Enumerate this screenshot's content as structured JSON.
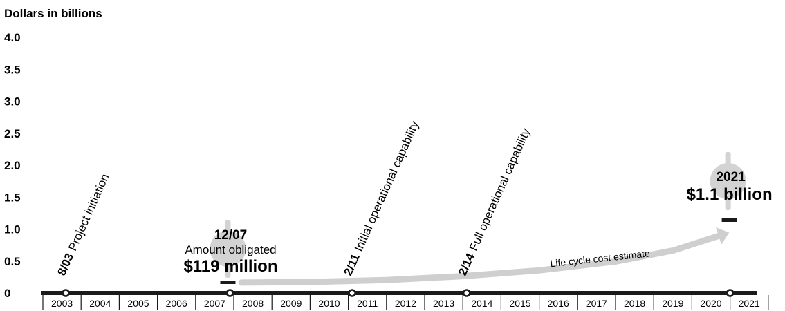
{
  "chart_data": {
    "type": "line",
    "ylabel": "Dollars in billions",
    "ylim": [
      0,
      4.0
    ],
    "yticks": [
      "4.0",
      "3.5",
      "3.0",
      "2.5",
      "2.0",
      "1.5",
      "1.0",
      "0.5",
      "0"
    ],
    "years": [
      "2003",
      "2004",
      "2005",
      "2006",
      "2007",
      "2008",
      "2009",
      "2010",
      "2011",
      "2012",
      "2013",
      "2014",
      "2015",
      "2016",
      "2017",
      "2018",
      "2019",
      "2020",
      "2021"
    ],
    "milestones": [
      {
        "date": "8/03",
        "label": "Project initiation",
        "x": 2003.6
      },
      {
        "date": "2/11",
        "label": "Initial operational capability",
        "x": 2011.1
      },
      {
        "date": "2/14",
        "label": "Full operational capability",
        "x": 2014.1
      }
    ],
    "markers": [
      {
        "x": 2007.9
      },
      {
        "x": 2021.0
      }
    ],
    "annotations": [
      {
        "date": "12/07",
        "subtitle": "Amount obligated",
        "value_label": "$119 million",
        "x": 2007.9,
        "value": 0.119
      },
      {
        "date": "2021",
        "subtitle": "",
        "value_label": "$1.1 billion",
        "x": 2021.0,
        "value": 1.1
      }
    ],
    "series": [
      {
        "name": "Life cycle cost estimate",
        "x": [
          2008.2,
          2010,
          2012,
          2014,
          2016,
          2018,
          2019.5,
          2020.7
        ],
        "y": [
          0.12,
          0.13,
          0.16,
          0.22,
          0.31,
          0.45,
          0.62,
          0.85
        ]
      }
    ],
    "colors": {
      "axis": "#1a1a1a",
      "curve": "#cfcfcf",
      "dollar": "#d3d3d3"
    }
  }
}
